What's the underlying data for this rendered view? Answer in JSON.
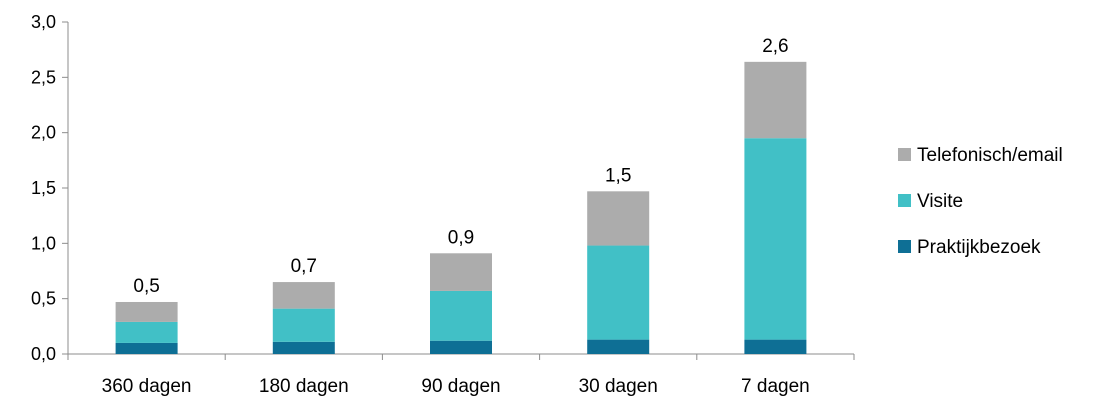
{
  "chart_data": {
    "type": "bar",
    "stacked": true,
    "categories": [
      "360 dagen",
      "180 dagen",
      "90 dagen",
      "30 dagen",
      "7 dagen"
    ],
    "series": [
      {
        "name": "Praktijkbezoek",
        "color": "#0e6f95",
        "values": [
          0.1,
          0.11,
          0.12,
          0.13,
          0.13
        ]
      },
      {
        "name": "Visite",
        "color": "#41c0c6",
        "values": [
          0.19,
          0.3,
          0.45,
          0.85,
          1.82
        ]
      },
      {
        "name": "Telefonisch/email",
        "color": "#acacac",
        "values": [
          0.18,
          0.24,
          0.34,
          0.49,
          0.69
        ]
      }
    ],
    "totals": [
      "0,5",
      "0,7",
      "0,9",
      "1,5",
      "2,6"
    ],
    "ylim": [
      0,
      3.0
    ],
    "yticks": [
      "0,0",
      "0,5",
      "1,0",
      "1,5",
      "2,0",
      "2,5",
      "3,0"
    ],
    "grid": false,
    "legend_position": "right"
  }
}
